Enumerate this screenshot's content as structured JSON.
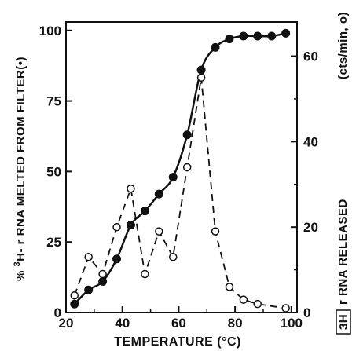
{
  "chart_data": {
    "type": "line",
    "xlabel": "TEMPERATURE (°C)",
    "xlim": [
      20,
      102
    ],
    "xticks": [
      20,
      40,
      60,
      80,
      100
    ],
    "left_axis": {
      "label_prefix": "% ",
      "label_sup": "3",
      "label_main": "H- r RNA MELTED FROM FILTER",
      "label_marker": "(•)",
      "ylim": [
        0,
        103
      ],
      "ticks": [
        0,
        25,
        50,
        75,
        100
      ]
    },
    "right_axis": {
      "label_iso": "3H",
      "label_main": "r RNA RELEASED",
      "label_units": "(cts/min, o)",
      "ylim": [
        0,
        68
      ],
      "ticks": [
        0,
        20,
        40,
        60
      ],
      "tick_labels": [
        "0",
        "20",
        "40",
        "60"
      ]
    },
    "series": [
      {
        "axis": "left",
        "marker": "filled-circle",
        "line": "solid",
        "x": [
          23,
          28,
          33,
          38,
          43,
          48,
          53,
          58,
          63,
          68,
          73,
          78,
          83,
          88,
          93,
          98
        ],
        "y": [
          3,
          8,
          11,
          19,
          31,
          36,
          42,
          48,
          63,
          86,
          94,
          97,
          98,
          98,
          98,
          99
        ]
      },
      {
        "axis": "right",
        "marker": "open-circle",
        "line": "dashed",
        "x": [
          23,
          28,
          33,
          38,
          43,
          48,
          53,
          58,
          63,
          68,
          73,
          78,
          83,
          88,
          98
        ],
        "y": [
          4,
          13,
          9,
          20,
          29,
          9,
          19,
          13,
          34,
          55,
          19,
          6,
          3,
          2,
          1
        ]
      }
    ]
  }
}
